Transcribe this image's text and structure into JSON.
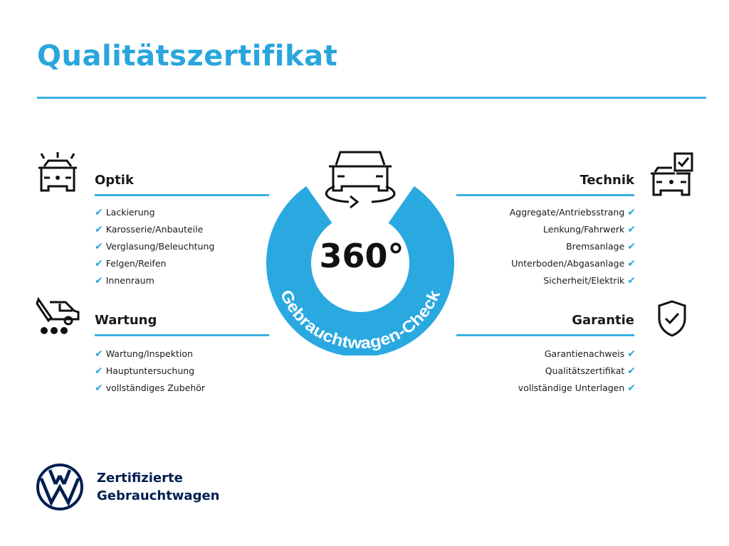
{
  "title": "Qualitätszertifikat",
  "accent_color": "#2aa6dc",
  "brand_color": "#001e50",
  "center": {
    "icon": "car-360-rotate-icon",
    "big_text": "360°",
    "ring_text": "Gebrauchtwagen-Check"
  },
  "sections": {
    "optik": {
      "icon": "car-lights-icon",
      "heading": "Optik",
      "items": [
        "Lackierung",
        "Karosserie/Anbauteile",
        "Verglasung/Beleuchtung",
        "Felgen/Reifen",
        "Innenraum"
      ]
    },
    "wartung": {
      "icon": "service-van-wrench-icon",
      "heading": "Wartung",
      "items": [
        "Wartung/Inspektion",
        "Hauptuntersuchung",
        "vollständiges Zubehör"
      ]
    },
    "technik": {
      "icon": "car-checkbox-icon",
      "heading": "Technik",
      "items": [
        "Aggregate/Antriebsstrang",
        "Lenkung/Fahrwerk",
        "Bremsanlage",
        "Unterboden/Abgasanlage",
        "Sicherheit/Elektrik"
      ]
    },
    "garantie": {
      "icon": "shield-check-icon",
      "heading": "Garantie",
      "items": [
        "Garantienachweis",
        "Qualitätszertifikat",
        "vollständige Unterlagen"
      ]
    }
  },
  "check_mark": "✔",
  "footer": {
    "logo": "vw-logo",
    "line1": "Zertifizierte",
    "line2": "Gebrauchtwagen"
  }
}
